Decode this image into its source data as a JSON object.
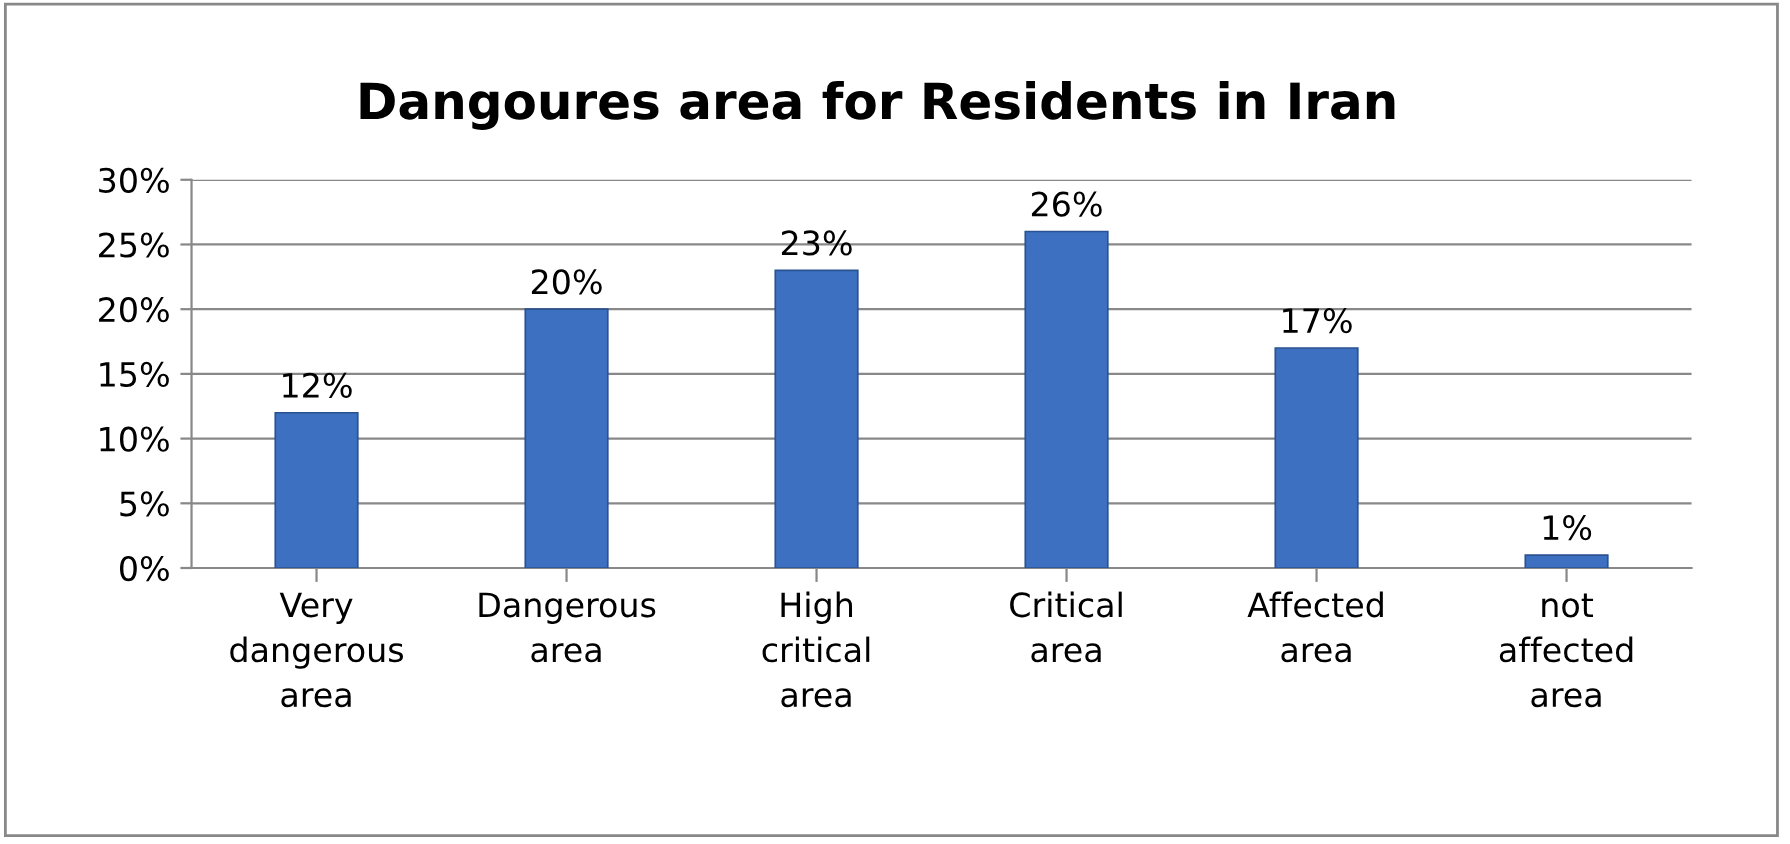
{
  "chart_data": {
    "type": "bar",
    "title": "Dangoures area for Residents in Iran",
    "categories": [
      "Very\ndangerous\narea",
      "Dangerous\narea",
      "High\ncritical\narea",
      "Critical\narea",
      "Affected\narea",
      "not\naffected\narea"
    ],
    "values": [
      12,
      20,
      23,
      26,
      17,
      1
    ],
    "value_labels": [
      "12%",
      "20%",
      "23%",
      "26%",
      "17%",
      "1%"
    ],
    "color": "#3d70c0",
    "ylim": [
      0,
      30
    ],
    "yticks": [
      {
        "value": 0,
        "label": "0%"
      },
      {
        "value": 5,
        "label": "5%"
      },
      {
        "value": 10,
        "label": "10%"
      },
      {
        "value": 15,
        "label": "15%"
      },
      {
        "value": 20,
        "label": "20%"
      },
      {
        "value": 25,
        "label": "25%"
      },
      {
        "value": 30,
        "label": "30%"
      }
    ],
    "grid": "y"
  }
}
